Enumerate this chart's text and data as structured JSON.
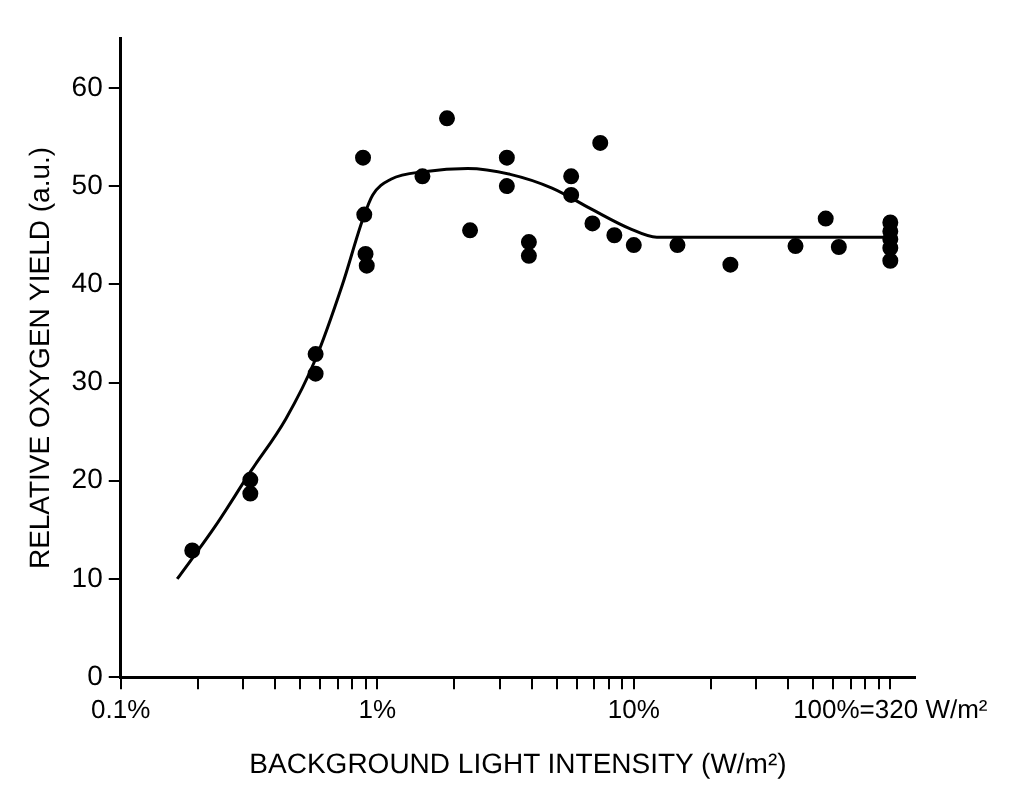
{
  "chart_data": {
    "type": "scatter",
    "xlabel": "BACKGROUND LIGHT INTENSITY (W/m²)",
    "ylabel": "RELATIVE OXYGEN YIELD (a.u.)",
    "log": "x",
    "grid": false,
    "legend": false,
    "xlim": [
      0.1,
      125
    ],
    "ylim": [
      0,
      65
    ],
    "xticks": [
      {
        "value": 0.1,
        "label": "0.1%"
      },
      {
        "value": 0.2,
        "label": null
      },
      {
        "value": 0.3,
        "label": null
      },
      {
        "value": 0.4,
        "label": null
      },
      {
        "value": 0.5,
        "label": null
      },
      {
        "value": 0.6,
        "label": null
      },
      {
        "value": 0.7,
        "label": null
      },
      {
        "value": 0.8,
        "label": null
      },
      {
        "value": 0.9,
        "label": null
      },
      {
        "value": 1,
        "label": "1%"
      },
      {
        "value": 2,
        "label": null
      },
      {
        "value": 3,
        "label": null
      },
      {
        "value": 4,
        "label": null
      },
      {
        "value": 5,
        "label": null
      },
      {
        "value": 6,
        "label": null
      },
      {
        "value": 7,
        "label": null
      },
      {
        "value": 8,
        "label": null
      },
      {
        "value": 9,
        "label": null
      },
      {
        "value": 10,
        "label": "10%"
      },
      {
        "value": 20,
        "label": null
      },
      {
        "value": 30,
        "label": null
      },
      {
        "value": 40,
        "label": null
      },
      {
        "value": 50,
        "label": null
      },
      {
        "value": 60,
        "label": null
      },
      {
        "value": 70,
        "label": null
      },
      {
        "value": 80,
        "label": null
      },
      {
        "value": 90,
        "label": null
      },
      {
        "value": 100,
        "label": "100%=320 W/m²"
      }
    ],
    "yticks": [
      0,
      10,
      20,
      30,
      40,
      50,
      60
    ],
    "series": [
      {
        "type": "scatter",
        "color": "#000000",
        "marker": "circle",
        "x": [
          0.19,
          0.32,
          0.32,
          0.575,
          0.575,
          0.88,
          0.89,
          0.9,
          0.91,
          1.5,
          1.87,
          2.3,
          3.2,
          3.2,
          3.9,
          3.9,
          5.7,
          5.7,
          6.9,
          7.4,
          8.4,
          10,
          14.8,
          23.8,
          42.7,
          56,
          63,
          100,
          100,
          100,
          100,
          100
        ],
        "values": [
          12.9,
          20.1,
          18.7,
          32.9,
          30.9,
          52.9,
          47.1,
          43.1,
          41.9,
          51.0,
          56.9,
          45.5,
          52.9,
          50.0,
          44.3,
          42.9,
          51.0,
          49.1,
          46.2,
          54.4,
          45.0,
          44.0,
          44.0,
          42.0,
          43.9,
          46.7,
          43.8,
          46.3,
          45.4,
          44.6,
          43.7,
          42.4
        ]
      },
      {
        "type": "line",
        "color": "#000000",
        "marker": "none",
        "x": [
          0.166,
          0.234,
          0.32,
          0.44,
          0.575,
          0.73,
          0.88,
          0.96,
          1.13,
          1.55,
          2.25,
          3.3,
          4.8,
          6.9,
          9.6,
          12.3,
          20,
          50,
          100
        ],
        "values": [
          10.0,
          15.4,
          20.9,
          26.3,
          32.4,
          39.9,
          46.7,
          49.1,
          50.7,
          51.5,
          51.8,
          51.2,
          49.8,
          47.6,
          45.7,
          44.8,
          44.8,
          44.8,
          44.8
        ]
      }
    ]
  }
}
